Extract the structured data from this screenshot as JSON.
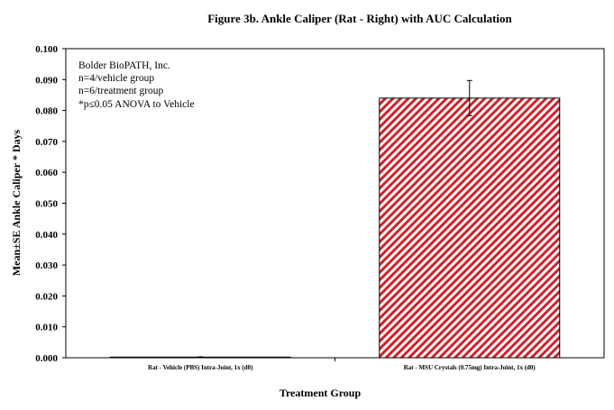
{
  "chart_data": {
    "type": "bar",
    "title": "Figure 3b.  Ankle Caliper (Rat - Right) with AUC Calculation",
    "xlabel": "Treatment Group",
    "ylabel": "Mean±SE Ankle Caliper  * Days",
    "categories": [
      "Rat - Vehicle (PBS) Intra-Joint, 1x (d0)",
      "Rat - MSU Crystals (0.75mg) Intra-Joint, 1x (d0)"
    ],
    "values": [
      0.0002,
      0.084
    ],
    "errors": [
      0.0001,
      0.0057
    ],
    "ylim": [
      0,
      0.1
    ],
    "yticks": [
      "0.000",
      "0.010",
      "0.020",
      "0.030",
      "0.040",
      "0.050",
      "0.060",
      "0.070",
      "0.080",
      "0.090",
      "0.100"
    ],
    "grid": false,
    "bar_colors": [
      "#ffffff",
      "#d0202a"
    ],
    "bar_fill_pattern": [
      "none",
      "diagonal-hatch"
    ],
    "annotations": [
      "Bolder BioPATH, Inc.",
      "n=4/vehicle group",
      "n=6/treatment group",
      "*p≤0.05 ANOVA to Vehicle"
    ]
  }
}
